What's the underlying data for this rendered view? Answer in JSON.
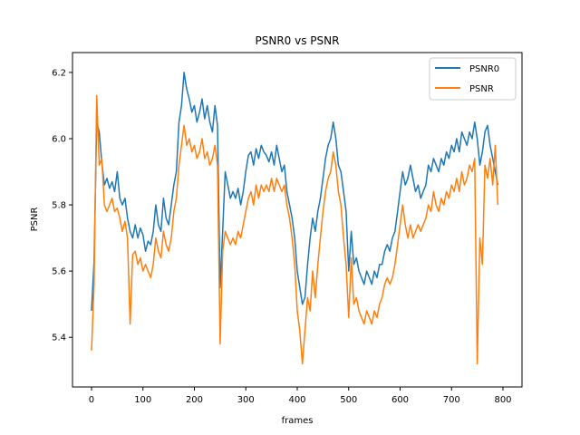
{
  "chart_data": {
    "type": "line",
    "title": "PSNR0 vs PSNR",
    "xlabel": "frames",
    "ylabel": "PSNR",
    "xlim": [
      -37,
      837
    ],
    "ylim": [
      5.25,
      6.26
    ],
    "xticks": [
      0,
      100,
      200,
      300,
      400,
      500,
      600,
      700,
      800
    ],
    "yticks": [
      5.4,
      5.6,
      5.8,
      6.0,
      6.2
    ],
    "ytick_labels": [
      "5.4",
      "5.6",
      "5.8",
      "6.0",
      "6.2"
    ],
    "grid": false,
    "legend_position": "top-right",
    "series": [
      {
        "name": "PSNR0",
        "color": "#1f77b4",
        "points": [
          [
            0,
            5.48
          ],
          [
            5,
            5.63
          ],
          [
            10,
            6.05
          ],
          [
            15,
            6.02
          ],
          [
            20,
            5.93
          ],
          [
            25,
            5.86
          ],
          [
            30,
            5.88
          ],
          [
            35,
            5.85
          ],
          [
            40,
            5.87
          ],
          [
            45,
            5.84
          ],
          [
            50,
            5.9
          ],
          [
            55,
            5.82
          ],
          [
            60,
            5.8
          ],
          [
            65,
            5.82
          ],
          [
            70,
            5.76
          ],
          [
            75,
            5.72
          ],
          [
            80,
            5.7
          ],
          [
            85,
            5.74
          ],
          [
            90,
            5.7
          ],
          [
            95,
            5.73
          ],
          [
            100,
            5.71
          ],
          [
            105,
            5.66
          ],
          [
            110,
            5.69
          ],
          [
            115,
            5.68
          ],
          [
            120,
            5.72
          ],
          [
            125,
            5.8
          ],
          [
            130,
            5.74
          ],
          [
            135,
            5.72
          ],
          [
            140,
            5.82
          ],
          [
            145,
            5.76
          ],
          [
            150,
            5.74
          ],
          [
            155,
            5.8
          ],
          [
            160,
            5.86
          ],
          [
            165,
            5.9
          ],
          [
            170,
            6.05
          ],
          [
            175,
            6.1
          ],
          [
            180,
            6.2
          ],
          [
            185,
            6.15
          ],
          [
            190,
            6.12
          ],
          [
            195,
            6.08
          ],
          [
            200,
            6.1
          ],
          [
            205,
            6.05
          ],
          [
            210,
            6.08
          ],
          [
            215,
            6.12
          ],
          [
            220,
            6.06
          ],
          [
            225,
            6.1
          ],
          [
            230,
            6.05
          ],
          [
            235,
            6.02
          ],
          [
            240,
            6.1
          ],
          [
            245,
            6.04
          ],
          [
            250,
            5.55
          ],
          [
            255,
            5.72
          ],
          [
            260,
            5.9
          ],
          [
            265,
            5.86
          ],
          [
            270,
            5.82
          ],
          [
            275,
            5.84
          ],
          [
            280,
            5.82
          ],
          [
            285,
            5.85
          ],
          [
            290,
            5.8
          ],
          [
            295,
            5.84
          ],
          [
            300,
            5.9
          ],
          [
            305,
            5.95
          ],
          [
            310,
            5.96
          ],
          [
            315,
            5.92
          ],
          [
            320,
            5.97
          ],
          [
            325,
            5.94
          ],
          [
            330,
            5.98
          ],
          [
            335,
            5.96
          ],
          [
            340,
            5.95
          ],
          [
            345,
            5.93
          ],
          [
            350,
            5.96
          ],
          [
            355,
            5.92
          ],
          [
            360,
            5.98
          ],
          [
            365,
            5.94
          ],
          [
            370,
            5.9
          ],
          [
            375,
            5.92
          ],
          [
            380,
            5.84
          ],
          [
            385,
            5.8
          ],
          [
            390,
            5.76
          ],
          [
            395,
            5.7
          ],
          [
            400,
            5.6
          ],
          [
            405,
            5.55
          ],
          [
            410,
            5.5
          ],
          [
            415,
            5.52
          ],
          [
            420,
            5.62
          ],
          [
            425,
            5.7
          ],
          [
            430,
            5.76
          ],
          [
            435,
            5.72
          ],
          [
            440,
            5.78
          ],
          [
            445,
            5.82
          ],
          [
            450,
            5.88
          ],
          [
            455,
            5.94
          ],
          [
            460,
            5.98
          ],
          [
            465,
            6.0
          ],
          [
            470,
            6.05
          ],
          [
            475,
            6.0
          ],
          [
            480,
            5.92
          ],
          [
            485,
            5.9
          ],
          [
            490,
            5.84
          ],
          [
            495,
            5.78
          ],
          [
            500,
            5.6
          ],
          [
            505,
            5.72
          ],
          [
            510,
            5.62
          ],
          [
            515,
            5.64
          ],
          [
            520,
            5.6
          ],
          [
            525,
            5.58
          ],
          [
            530,
            5.56
          ],
          [
            535,
            5.6
          ],
          [
            540,
            5.58
          ],
          [
            545,
            5.56
          ],
          [
            550,
            5.6
          ],
          [
            555,
            5.58
          ],
          [
            560,
            5.62
          ],
          [
            565,
            5.62
          ],
          [
            570,
            5.66
          ],
          [
            575,
            5.68
          ],
          [
            580,
            5.66
          ],
          [
            585,
            5.7
          ],
          [
            590,
            5.72
          ],
          [
            595,
            5.78
          ],
          [
            600,
            5.84
          ],
          [
            605,
            5.9
          ],
          [
            610,
            5.86
          ],
          [
            615,
            5.88
          ],
          [
            620,
            5.92
          ],
          [
            625,
            5.88
          ],
          [
            630,
            5.84
          ],
          [
            635,
            5.86
          ],
          [
            640,
            5.82
          ],
          [
            645,
            5.84
          ],
          [
            650,
            5.86
          ],
          [
            655,
            5.92
          ],
          [
            660,
            5.9
          ],
          [
            665,
            5.94
          ],
          [
            670,
            5.92
          ],
          [
            675,
            5.9
          ],
          [
            680,
            5.94
          ],
          [
            685,
            5.92
          ],
          [
            690,
            5.96
          ],
          [
            695,
            5.94
          ],
          [
            700,
            5.98
          ],
          [
            705,
            5.96
          ],
          [
            710,
            6.0
          ],
          [
            715,
            5.96
          ],
          [
            720,
            6.02
          ],
          [
            725,
            6.0
          ],
          [
            730,
            5.98
          ],
          [
            735,
            6.02
          ],
          [
            740,
            6.0
          ],
          [
            745,
            6.05
          ],
          [
            750,
            6.0
          ],
          [
            755,
            5.92
          ],
          [
            760,
            5.96
          ],
          [
            765,
            6.02
          ],
          [
            770,
            6.04
          ],
          [
            775,
            5.98
          ],
          [
            780,
            5.94
          ],
          [
            785,
            5.9
          ],
          [
            790,
            5.86
          ]
        ]
      },
      {
        "name": "PSNR",
        "color": "#ff7f0e",
        "points": [
          [
            0,
            5.36
          ],
          [
            5,
            5.56
          ],
          [
            10,
            6.13
          ],
          [
            15,
            5.92
          ],
          [
            20,
            5.94
          ],
          [
            25,
            5.8
          ],
          [
            30,
            5.78
          ],
          [
            35,
            5.8
          ],
          [
            40,
            5.82
          ],
          [
            45,
            5.78
          ],
          [
            50,
            5.79
          ],
          [
            55,
            5.76
          ],
          [
            60,
            5.72
          ],
          [
            65,
            5.75
          ],
          [
            70,
            5.7
          ],
          [
            75,
            5.44
          ],
          [
            80,
            5.65
          ],
          [
            85,
            5.66
          ],
          [
            90,
            5.62
          ],
          [
            95,
            5.64
          ],
          [
            100,
            5.6
          ],
          [
            105,
            5.62
          ],
          [
            110,
            5.6
          ],
          [
            115,
            5.58
          ],
          [
            120,
            5.62
          ],
          [
            125,
            5.7
          ],
          [
            130,
            5.66
          ],
          [
            135,
            5.64
          ],
          [
            140,
            5.72
          ],
          [
            145,
            5.68
          ],
          [
            150,
            5.66
          ],
          [
            155,
            5.7
          ],
          [
            160,
            5.78
          ],
          [
            165,
            5.82
          ],
          [
            170,
            5.92
          ],
          [
            175,
            5.98
          ],
          [
            180,
            6.04
          ],
          [
            185,
            5.98
          ],
          [
            190,
            6.0
          ],
          [
            195,
            5.96
          ],
          [
            200,
            5.98
          ],
          [
            205,
            5.94
          ],
          [
            210,
            5.96
          ],
          [
            215,
            6.0
          ],
          [
            220,
            5.94
          ],
          [
            225,
            5.96
          ],
          [
            230,
            5.92
          ],
          [
            235,
            5.94
          ],
          [
            240,
            5.98
          ],
          [
            245,
            5.92
          ],
          [
            250,
            5.38
          ],
          [
            255,
            5.66
          ],
          [
            260,
            5.72
          ],
          [
            265,
            5.7
          ],
          [
            270,
            5.68
          ],
          [
            275,
            5.7
          ],
          [
            280,
            5.68
          ],
          [
            285,
            5.72
          ],
          [
            290,
            5.7
          ],
          [
            295,
            5.74
          ],
          [
            300,
            5.78
          ],
          [
            305,
            5.82
          ],
          [
            310,
            5.84
          ],
          [
            315,
            5.8
          ],
          [
            320,
            5.86
          ],
          [
            325,
            5.82
          ],
          [
            330,
            5.86
          ],
          [
            335,
            5.84
          ],
          [
            340,
            5.86
          ],
          [
            345,
            5.84
          ],
          [
            350,
            5.88
          ],
          [
            355,
            5.84
          ],
          [
            360,
            5.88
          ],
          [
            365,
            5.86
          ],
          [
            370,
            5.84
          ],
          [
            375,
            5.86
          ],
          [
            380,
            5.8
          ],
          [
            385,
            5.76
          ],
          [
            390,
            5.7
          ],
          [
            395,
            5.62
          ],
          [
            400,
            5.48
          ],
          [
            405,
            5.42
          ],
          [
            410,
            5.32
          ],
          [
            415,
            5.42
          ],
          [
            420,
            5.52
          ],
          [
            425,
            5.48
          ],
          [
            430,
            5.6
          ],
          [
            435,
            5.52
          ],
          [
            440,
            5.62
          ],
          [
            445,
            5.7
          ],
          [
            450,
            5.78
          ],
          [
            455,
            5.84
          ],
          [
            460,
            5.88
          ],
          [
            465,
            5.9
          ],
          [
            470,
            5.96
          ],
          [
            475,
            5.92
          ],
          [
            480,
            5.84
          ],
          [
            485,
            5.8
          ],
          [
            490,
            5.7
          ],
          [
            495,
            5.62
          ],
          [
            500,
            5.46
          ],
          [
            505,
            5.64
          ],
          [
            510,
            5.5
          ],
          [
            515,
            5.52
          ],
          [
            520,
            5.48
          ],
          [
            525,
            5.46
          ],
          [
            530,
            5.44
          ],
          [
            535,
            5.48
          ],
          [
            540,
            5.46
          ],
          [
            545,
            5.44
          ],
          [
            550,
            5.48
          ],
          [
            555,
            5.46
          ],
          [
            560,
            5.5
          ],
          [
            565,
            5.52
          ],
          [
            570,
            5.56
          ],
          [
            575,
            5.58
          ],
          [
            580,
            5.56
          ],
          [
            585,
            5.58
          ],
          [
            590,
            5.62
          ],
          [
            595,
            5.68
          ],
          [
            600,
            5.74
          ],
          [
            605,
            5.8
          ],
          [
            610,
            5.74
          ],
          [
            615,
            5.7
          ],
          [
            620,
            5.74
          ],
          [
            625,
            5.7
          ],
          [
            630,
            5.72
          ],
          [
            635,
            5.74
          ],
          [
            640,
            5.72
          ],
          [
            645,
            5.74
          ],
          [
            650,
            5.76
          ],
          [
            655,
            5.8
          ],
          [
            660,
            5.78
          ],
          [
            665,
            5.84
          ],
          [
            670,
            5.8
          ],
          [
            675,
            5.78
          ],
          [
            680,
            5.82
          ],
          [
            685,
            5.8
          ],
          [
            690,
            5.84
          ],
          [
            695,
            5.82
          ],
          [
            700,
            5.86
          ],
          [
            705,
            5.84
          ],
          [
            710,
            5.88
          ],
          [
            715,
            5.84
          ],
          [
            720,
            5.9
          ],
          [
            725,
            5.86
          ],
          [
            730,
            5.88
          ],
          [
            735,
            5.92
          ],
          [
            740,
            5.9
          ],
          [
            745,
            5.94
          ],
          [
            750,
            5.32
          ],
          [
            755,
            5.7
          ],
          [
            760,
            5.62
          ],
          [
            765,
            5.92
          ],
          [
            770,
            5.88
          ],
          [
            775,
            5.94
          ],
          [
            780,
            5.86
          ],
          [
            785,
            5.98
          ],
          [
            790,
            5.8
          ]
        ]
      }
    ]
  }
}
